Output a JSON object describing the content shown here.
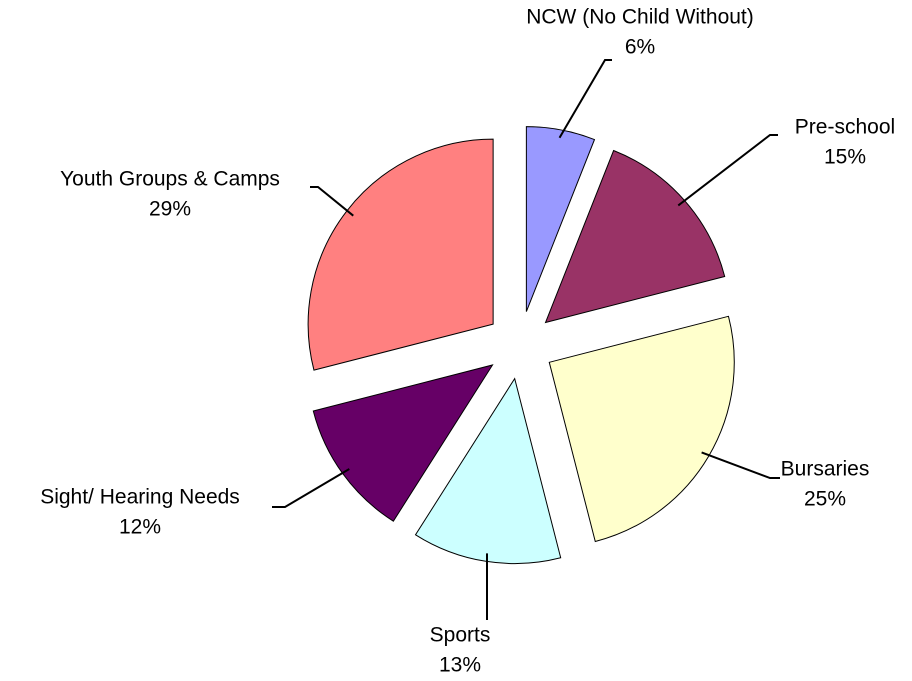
{
  "chart_data": {
    "type": "pie",
    "categories": [
      "NCW (No Child Without)",
      "Pre-school",
      "Bursaries",
      "Sports",
      "Sight/ Hearing Needs",
      "Youth Groups & Camps"
    ],
    "values": [
      6,
      15,
      25,
      13,
      12,
      29
    ],
    "value_labels": [
      "6%",
      "15%",
      "25%",
      "13%",
      "12%",
      "29%"
    ],
    "colors": [
      "#9999ff",
      "#993366",
      "#ffffcc",
      "#ccffff",
      "#660066",
      "#ff8080"
    ]
  }
}
